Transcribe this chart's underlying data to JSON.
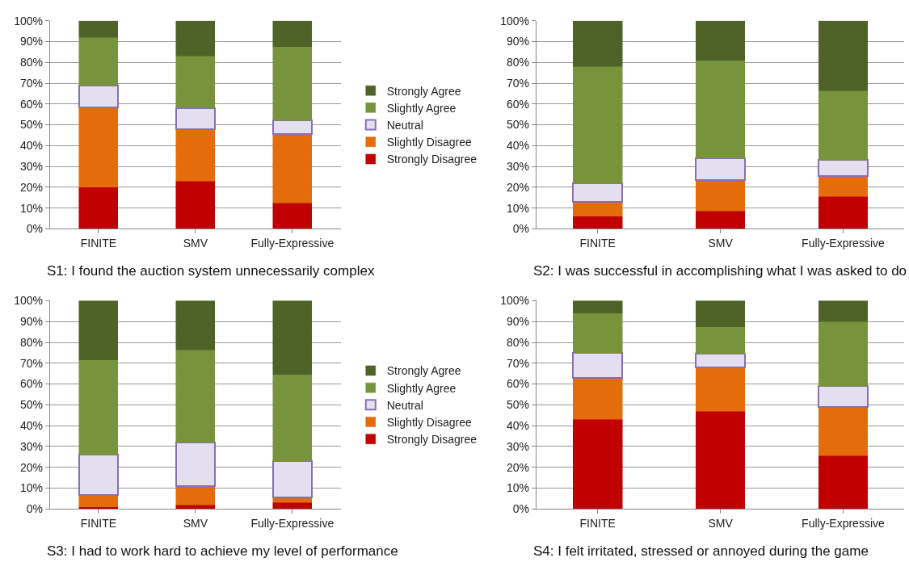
{
  "chart_data": [
    {
      "type": "bar",
      "stacked": true,
      "title": "S1: I found the auction system unnecessarily complex",
      "categories": [
        "FINITE",
        "SMV",
        "Fully-Expressive"
      ],
      "ylim": [
        0,
        100
      ],
      "yticks": [
        {
          "value": 0,
          "label": "0%"
        },
        {
          "value": 10,
          "label": "10%"
        },
        {
          "value": 20,
          "label": "20%"
        },
        {
          "value": 30,
          "label": "30%"
        },
        {
          "value": 40,
          "label": "40%"
        },
        {
          "value": 50,
          "label": "50%"
        },
        {
          "value": 60,
          "label": "60%"
        },
        {
          "value": 70,
          "label": "70%"
        },
        {
          "value": 80,
          "label": "80%"
        },
        {
          "value": 90,
          "label": "90%"
        },
        {
          "value": 100,
          "label": "100%"
        }
      ],
      "grid": "y",
      "legend": "right",
      "series": [
        {
          "name": "Strongly Disagree",
          "color": "#c00000",
          "values": [
            20,
            23,
            12.5
          ]
        },
        {
          "name": "Slightly Disagree",
          "color": "#e46c0a",
          "values": [
            38.5,
            25,
            33
          ]
        },
        {
          "name": "Neutral",
          "color": "#e4dff0",
          "values": [
            10.5,
            10,
            6.5
          ]
        },
        {
          "name": "Slightly Agree",
          "color": "#77933c",
          "values": [
            23,
            25,
            35.5
          ]
        },
        {
          "name": "Strongly Agree",
          "color": "#4f6228",
          "values": [
            8,
            17,
            12.5
          ]
        }
      ]
    },
    {
      "type": "bar",
      "stacked": true,
      "title": "S2: I was successful in accomplishing what I was asked to do",
      "categories": [
        "FINITE",
        "SMV",
        "Fully-Expressive"
      ],
      "ylim": [
        0,
        100
      ],
      "yticks": [
        {
          "value": 0,
          "label": "0%"
        },
        {
          "value": 10,
          "label": "10%"
        },
        {
          "value": 20,
          "label": "20%"
        },
        {
          "value": 30,
          "label": "30%"
        },
        {
          "value": 40,
          "label": "40%"
        },
        {
          "value": 50,
          "label": "50%"
        },
        {
          "value": 60,
          "label": "60%"
        },
        {
          "value": 70,
          "label": "70%"
        },
        {
          "value": 80,
          "label": "80%"
        },
        {
          "value": 90,
          "label": "90%"
        },
        {
          "value": 100,
          "label": "100%"
        }
      ],
      "grid": "y",
      "series": [
        {
          "color": "#c00000",
          "values": [
            6,
            8.5,
            15.5
          ]
        },
        {
          "color": "#e46c0a",
          "values": [
            7,
            15,
            10
          ]
        },
        {
          "color": "#e4dff0",
          "values": [
            9,
            10.5,
            7.5
          ]
        },
        {
          "color": "#77933c",
          "values": [
            56,
            47,
            33.5
          ]
        },
        {
          "color": "#4f6228",
          "values": [
            22,
            19,
            33.5
          ]
        }
      ]
    },
    {
      "type": "bar",
      "stacked": true,
      "title": "S3: I had to work hard to achieve my level of performance",
      "categories": [
        "FINITE",
        "SMV",
        "Fully-Expressive"
      ],
      "ylim": [
        0,
        100
      ],
      "yticks": [
        {
          "value": 0,
          "label": "0%"
        },
        {
          "value": 10,
          "label": "10%"
        },
        {
          "value": 20,
          "label": "20%"
        },
        {
          "value": 30,
          "label": "30%"
        },
        {
          "value": 40,
          "label": "40%"
        },
        {
          "value": 50,
          "label": "50%"
        },
        {
          "value": 60,
          "label": "60%"
        },
        {
          "value": 70,
          "label": "70%"
        },
        {
          "value": 80,
          "label": "80%"
        },
        {
          "value": 90,
          "label": "90%"
        },
        {
          "value": 100,
          "label": "100%"
        }
      ],
      "grid": "y",
      "legend": "right",
      "series": [
        {
          "name": "Strongly Disagree",
          "color": "#c00000",
          "values": [
            1,
            2,
            3
          ]
        },
        {
          "name": "Slightly Disagree",
          "color": "#e46c0a",
          "values": [
            5.5,
            9,
            2.5
          ]
        },
        {
          "name": "Neutral",
          "color": "#e4dff0",
          "values": [
            19.5,
            21,
            17.5
          ]
        },
        {
          "name": "Slightly Agree",
          "color": "#77933c",
          "values": [
            45.5,
            44.5,
            41.5
          ]
        },
        {
          "name": "Strongly Agree",
          "color": "#4f6228",
          "values": [
            28.5,
            23.5,
            35.5
          ]
        }
      ]
    },
    {
      "type": "bar",
      "stacked": true,
      "title": "S4: I felt irritated, stressed or annoyed during the game",
      "categories": [
        "FINITE",
        "SMV",
        "Fully-Expressive"
      ],
      "ylim": [
        0,
        100
      ],
      "yticks": [
        {
          "value": 0,
          "label": "0%"
        },
        {
          "value": 10,
          "label": "10%"
        },
        {
          "value": 20,
          "label": "20%"
        },
        {
          "value": 30,
          "label": "30%"
        },
        {
          "value": 40,
          "label": "40%"
        },
        {
          "value": 50,
          "label": "50%"
        },
        {
          "value": 60,
          "label": "60%"
        },
        {
          "value": 70,
          "label": "70%"
        },
        {
          "value": 80,
          "label": "80%"
        },
        {
          "value": 90,
          "label": "90%"
        },
        {
          "value": 100,
          "label": "100%"
        }
      ],
      "grid": "y",
      "series": [
        {
          "color": "#c00000",
          "values": [
            43,
            47,
            25.5
          ]
        },
        {
          "color": "#e46c0a",
          "values": [
            20,
            21,
            23.5
          ]
        },
        {
          "color": "#e4dff0",
          "values": [
            12,
            6.5,
            10
          ]
        },
        {
          "color": "#77933c",
          "values": [
            19,
            13,
            31
          ]
        },
        {
          "color": "#4f6228",
          "values": [
            6,
            12.5,
            10
          ]
        }
      ]
    }
  ]
}
